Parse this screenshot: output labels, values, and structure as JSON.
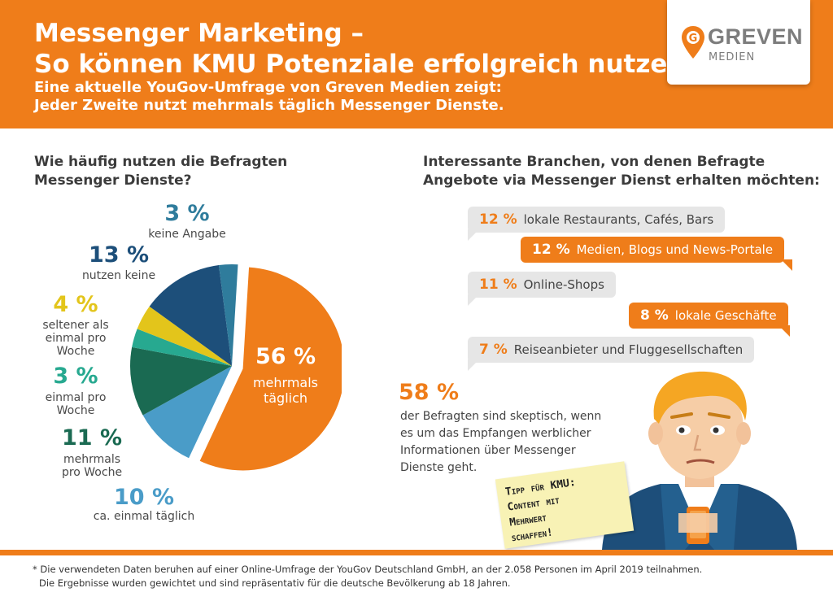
{
  "header": {
    "title_line1": "Messenger Marketing –",
    "title_line2": "So können KMU Potenziale erfolgreich nutzen",
    "subtitle_line1": "Eine aktuelle YouGov-Umfrage von Greven Medien zeigt:",
    "subtitle_line2": "Jeder Zweite nutzt mehrmals täglich Messenger Dienste.",
    "logo_name": "GREVEN",
    "logo_sub": "MEDIEN",
    "logo_letter": "G"
  },
  "left": {
    "title_line1": "Wie häufig nutzen die Befragten",
    "title_line2": "Messenger Dienste?"
  },
  "right": {
    "title_line1": "Interessante Branchen, von denen Befragte",
    "title_line2": "Angebote via Messenger Dienst erhalten möchten:"
  },
  "chart_data": [
    {
      "type": "pie",
      "title": "Wie häufig nutzen die Befragten Messenger Dienste?",
      "slices": [
        {
          "label": "mehrmals täglich",
          "pct_text": "56 %",
          "value": 56,
          "color": "#ef7d1a"
        },
        {
          "label": "ca. einmal täglich",
          "pct_text": "10 %",
          "value": 10,
          "color": "#4a9cc8"
        },
        {
          "label": "mehrmals pro Woche",
          "pct_text": "11 %",
          "value": 11,
          "color": "#1a6a52"
        },
        {
          "label": "einmal pro Woche",
          "pct_text": "3 %",
          "value": 3,
          "color": "#27a990"
        },
        {
          "label": "seltener als einmal pro Woche",
          "pct_text": "4 %",
          "value": 4,
          "color": "#e3c51b"
        },
        {
          "label": "nutzen keine",
          "pct_text": "13 %",
          "value": 13,
          "color": "#1d4f7a"
        },
        {
          "label": "keine Angabe",
          "pct_text": "3 %",
          "value": 3,
          "color": "#2f7c9c"
        }
      ]
    },
    {
      "type": "bar",
      "title": "Interessante Branchen, von denen Befragte Angebote via Messenger Dienst erhalten möchten:",
      "categories": [
        "lokale Restaurants, Cafés, Bars",
        "Medien, Blogs und News-Portale",
        "Online-Shops",
        "lokale Geschäfte",
        "Reiseanbieter und Fluggesellschaften"
      ],
      "values": [
        12,
        12,
        11,
        8,
        7
      ],
      "value_texts": [
        "12 %",
        "12 %",
        "11 %",
        "8 %",
        "7 %"
      ]
    }
  ],
  "labels": {
    "l56_line1": "mehrmals",
    "l56_line2": "täglich",
    "l10": "ca. einmal täglich",
    "l11_line1": "mehrmals",
    "l11_line2": "pro Woche",
    "l3w_line1": "einmal pro",
    "l3w_line2": "Woche",
    "l4_line1": "seltener als",
    "l4_line2": "einmal pro",
    "l4_line3": "Woche",
    "l13": "nutzen keine",
    "l3k": "keine Angabe"
  },
  "skeptic": {
    "pct": "58 %",
    "line1": "der Befragten sind skeptisch, wenn",
    "line2": "es um das Empfangen werblicher",
    "line3": "Informationen über Messenger",
    "line4": "Dienste geht."
  },
  "note": {
    "line1": "Tipp für KMU:",
    "line2": "Content mit",
    "line3": "Mehrwert",
    "line4": "schaffen!"
  },
  "footnote": {
    "line1": "* Die verwendeten Daten beruhen auf einer Online-Umfrage der YouGov Deutschland GmbH, an der 2.058 Personen im April 2019 teilnahmen.",
    "line2": "Die Ergebnisse wurden gewichtet und sind repräsentativ für die deutsche Bevölkerung ab 18 Jahren."
  },
  "colors": {
    "accent": "#ef7d1a",
    "bubble_grey": "#e6e6e6"
  }
}
